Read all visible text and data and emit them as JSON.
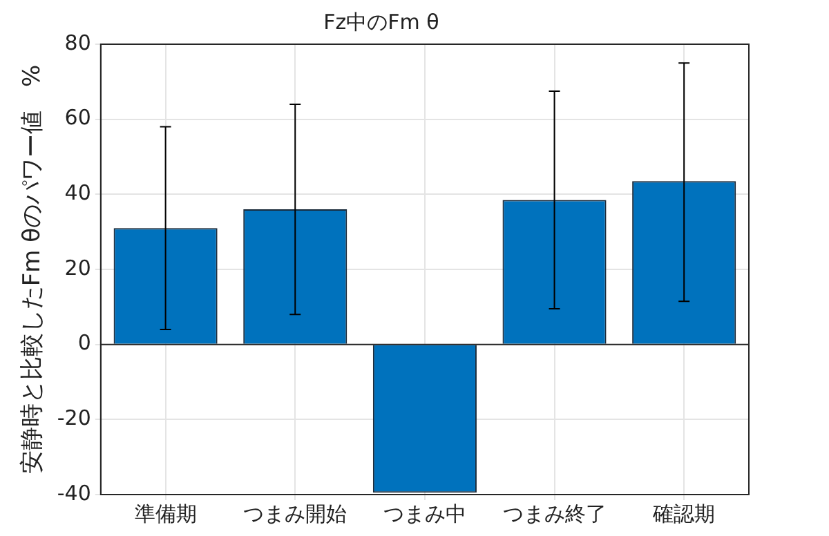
{
  "chart_data": {
    "type": "bar",
    "title": "Fz中のFm θ",
    "ylabel": "安静時と比較したFm θのパワー値　%",
    "categories": [
      "準備期",
      "つまみ開始",
      "つまみ中",
      "つまみ終了",
      "確認期"
    ],
    "values": [
      31,
      36,
      -39.5,
      38.5,
      43.5
    ],
    "errors": [
      [
        4,
        58
      ],
      [
        8,
        64
      ],
      null,
      [
        9.5,
        67.5
      ],
      [
        11.5,
        75
      ]
    ],
    "color": "#0072bd",
    "ylim": [
      -40,
      80
    ],
    "yticks": [
      -40,
      -20,
      0,
      20,
      40,
      60,
      80
    ],
    "grid": true
  }
}
